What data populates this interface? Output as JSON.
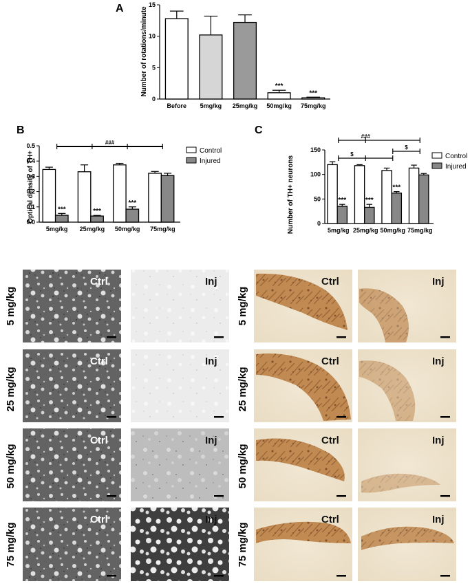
{
  "chart_data": [
    {
      "id": "A",
      "type": "bar",
      "title": "",
      "panel": "A",
      "ylabel": "Number of rotations/minute",
      "xlabel": "",
      "ylim": [
        0,
        15
      ],
      "yticks": [
        0,
        5,
        10,
        15
      ],
      "categories": [
        "Before",
        "5mg/kg",
        "25mg/kg",
        "50mg/kg",
        "75mg/kg"
      ],
      "values": [
        12.8,
        10.2,
        12.2,
        1.0,
        0.2
      ],
      "errors": [
        1.2,
        3.0,
        1.2,
        0.4,
        0.1
      ],
      "bar_colors": [
        "#ffffff",
        "#d6d6d6",
        "#9a9a9a",
        "#ffffff",
        "#ffffff"
      ],
      "significance": [
        "",
        "",
        "",
        "***",
        "***"
      ],
      "grid": false
    },
    {
      "id": "B",
      "type": "bar",
      "title": "",
      "panel": "B",
      "ylabel": "Optical density of TH+",
      "xlabel": "",
      "ylim": [
        0,
        0.5
      ],
      "yticks": [
        "0.0",
        "0.1",
        "0.2",
        "0.3",
        "0.4",
        "0.5"
      ],
      "categories": [
        "5mg/kg",
        "25mg/kg",
        "50mg/kg",
        "75mg/kg"
      ],
      "series": [
        {
          "name": "Control",
          "color": "#ffffff",
          "values": [
            0.345,
            0.33,
            0.375,
            0.32
          ],
          "errors": [
            0.015,
            0.045,
            0.01,
            0.012
          ]
        },
        {
          "name": "Injured",
          "color": "#888888",
          "values": [
            0.045,
            0.04,
            0.085,
            0.305
          ],
          "errors": [
            0.012,
            0.004,
            0.015,
            0.015
          ]
        }
      ],
      "significance": [
        "***",
        "***",
        "***",
        ""
      ],
      "bracket_label": "###",
      "legend": "top-right",
      "grid": false
    },
    {
      "id": "C",
      "type": "bar",
      "title": "",
      "panel": "C",
      "ylabel": "Number of TH+ neurons",
      "xlabel": "",
      "ylim": [
        0,
        150
      ],
      "yticks": [
        0,
        50,
        100,
        150
      ],
      "categories": [
        "5mg/kg",
        "25mg/kg",
        "50mg/kg",
        "75mg/kg"
      ],
      "series": [
        {
          "name": "Control",
          "color": "#ffffff",
          "values": [
            120,
            118,
            108,
            113
          ],
          "errors": [
            6,
            2,
            5,
            6
          ]
        },
        {
          "name": "Injured",
          "color": "#888888",
          "values": [
            35,
            33,
            62,
            99
          ],
          "errors": [
            4,
            6,
            3,
            3
          ]
        }
      ],
      "significance": [
        "***",
        "***",
        "***",
        ""
      ],
      "brackets": [
        {
          "label": "###"
        },
        {
          "label": "$"
        },
        {
          "label": "$"
        }
      ],
      "legend": "top-right",
      "grid": false
    }
  ],
  "micrographs": {
    "row_labels": [
      "5 mg/kg",
      "25 mg/kg",
      "50 mg/kg",
      "75 mg/kg"
    ],
    "ctrl_label": "Ctrl",
    "inj_label": "Inj"
  }
}
